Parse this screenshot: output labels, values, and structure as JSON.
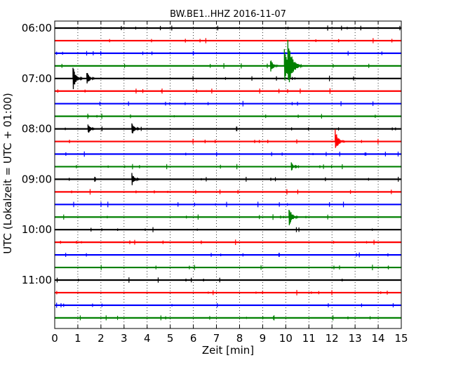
{
  "chart_data": {
    "type": "line",
    "title": "BW.BE1..HHZ 2016-11-07",
    "xlabel": "Zeit  [min]",
    "ylabel": "UTC (Lokalzeit = UTC + 01:00)",
    "xlim": [
      0,
      15
    ],
    "x_ticks": [
      "0",
      "1",
      "2",
      "3",
      "4",
      "5",
      "6",
      "7",
      "8",
      "9",
      "10",
      "11",
      "12",
      "13",
      "14",
      "15"
    ],
    "y_tick_labels": [
      "06:00",
      "07:00",
      "08:00",
      "09:00",
      "10:00",
      "11:00"
    ],
    "grid": "vertical dotted",
    "trace_colors": [
      "#000000",
      "#ff0000",
      "#0000ff",
      "#008000"
    ],
    "trace_start_times": [
      "06:00",
      "06:15",
      "06:30",
      "06:45",
      "07:00",
      "07:15",
      "07:30",
      "07:45",
      "08:00",
      "08:15",
      "08:30",
      "08:45",
      "09:00",
      "09:15",
      "09:30",
      "09:45",
      "10:00",
      "10:15",
      "10:30",
      "10:45",
      "11:00",
      "11:15",
      "11:30",
      "11:45"
    ],
    "events": [
      {
        "trace": 3,
        "minute": 9.4,
        "amplitude": 0.6
      },
      {
        "trace": 3,
        "minute": 10.0,
        "amplitude": 1.6
      },
      {
        "trace": 3,
        "minute": 10.15,
        "amplitude": 2.1
      },
      {
        "trace": 4,
        "minute": 0.85,
        "amplitude": 1.0
      },
      {
        "trace": 4,
        "minute": 1.45,
        "amplitude": 0.6
      },
      {
        "trace": 8,
        "minute": 1.5,
        "amplitude": 0.45
      },
      {
        "trace": 8,
        "minute": 3.4,
        "amplitude": 0.6
      },
      {
        "trace": 9,
        "minute": 12.2,
        "amplitude": 1.0
      },
      {
        "trace": 11,
        "minute": 10.3,
        "amplitude": 0.4
      },
      {
        "trace": 12,
        "minute": 3.4,
        "amplitude": 0.55
      },
      {
        "trace": 15,
        "minute": 10.2,
        "amplitude": 0.9
      }
    ]
  }
}
